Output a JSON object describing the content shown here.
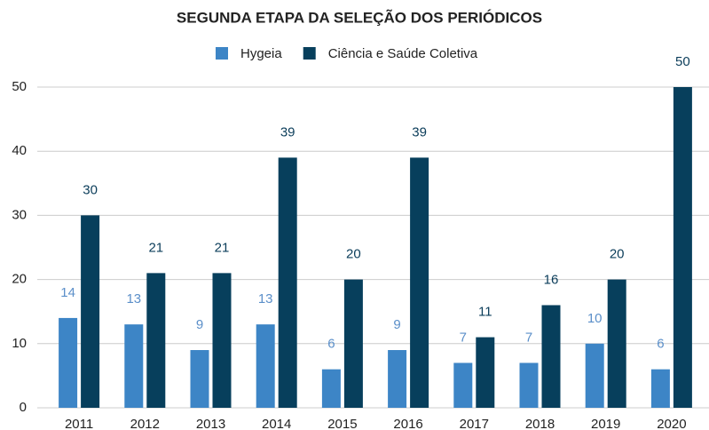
{
  "chart_data": {
    "type": "bar",
    "title": "SEGUNDA ETAPA DA SELEÇÃO DOS PERIÓDICOS",
    "categories": [
      "2011",
      "2012",
      "2013",
      "2014",
      "2015",
      "2016",
      "2017",
      "2018",
      "2019",
      "2020"
    ],
    "series": [
      {
        "name": "Hygeia",
        "color": "#3d85c6",
        "label_color": "#5b8fc9",
        "values": [
          14,
          13,
          9,
          13,
          6,
          9,
          7,
          7,
          10,
          6
        ]
      },
      {
        "name": "Ciência e Saúde Coletiva",
        "color": "#073f5c",
        "label_color": "#0b3d5a",
        "values": [
          30,
          21,
          21,
          39,
          20,
          39,
          11,
          16,
          20,
          50
        ]
      }
    ],
    "ylim": [
      0,
      50
    ],
    "yticks": [
      0,
      10,
      20,
      30,
      40,
      50
    ],
    "grid": true,
    "legend": "top"
  }
}
